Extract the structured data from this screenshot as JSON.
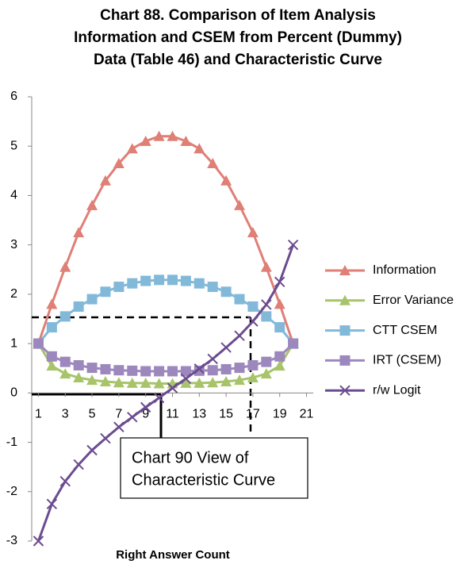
{
  "chart_data": {
    "type": "line",
    "title": [
      "Chart 88. Comparison of Item Analysis",
      "Information and CSEM from Percent (Dummy)",
      "Data (Table 46) and Characteristic Curve"
    ],
    "x_label": "Right Answer Count",
    "annotation": [
      "Chart 90 View of",
      "Characteristic Curve"
    ],
    "x": [
      1,
      2,
      3,
      4,
      5,
      6,
      7,
      8,
      9,
      10,
      11,
      12,
      13,
      14,
      15,
      16,
      17,
      18,
      19,
      20
    ],
    "xlim": [
      0.5,
      21.5
    ],
    "xticks": [
      1,
      3,
      5,
      7,
      9,
      11,
      13,
      15,
      17,
      19,
      21
    ],
    "ylim": [
      -3,
      6
    ],
    "yticks": [
      -3,
      -2,
      -1,
      0,
      1,
      2,
      3,
      4,
      5,
      6
    ],
    "legend": "right",
    "series": [
      {
        "name": "Information",
        "color": "#df7f76",
        "marker": "triangle",
        "values": [
          1.0,
          1.8,
          2.55,
          3.25,
          3.8,
          4.3,
          4.65,
          4.95,
          5.1,
          5.2,
          5.2,
          5.1,
          4.95,
          4.65,
          4.3,
          3.8,
          3.25,
          2.55,
          1.8,
          1.0
        ]
      },
      {
        "name": "Error Variance",
        "color": "#a7c46a",
        "marker": "triangle",
        "values": [
          1.0,
          0.55,
          0.39,
          0.31,
          0.26,
          0.23,
          0.21,
          0.2,
          0.2,
          0.19,
          0.19,
          0.2,
          0.2,
          0.21,
          0.23,
          0.26,
          0.31,
          0.39,
          0.55,
          1.0
        ]
      },
      {
        "name": "CTT CSEM",
        "color": "#82b9d9",
        "marker": "square",
        "values": [
          1.0,
          1.33,
          1.55,
          1.75,
          1.9,
          2.05,
          2.15,
          2.22,
          2.27,
          2.29,
          2.29,
          2.27,
          2.22,
          2.15,
          2.05,
          1.9,
          1.75,
          1.55,
          1.33,
          1.0
        ]
      },
      {
        "name": "IRT (CSEM)",
        "color": "#9d88bd",
        "marker": "square",
        "values": [
          1.0,
          0.74,
          0.63,
          0.56,
          0.51,
          0.48,
          0.46,
          0.45,
          0.44,
          0.44,
          0.44,
          0.44,
          0.45,
          0.46,
          0.48,
          0.51,
          0.56,
          0.63,
          0.74,
          1.0
        ]
      },
      {
        "name": "r/w Logit",
        "color": "#6b4c90",
        "marker": "x",
        "values": [
          -3.0,
          -2.25,
          -1.79,
          -1.45,
          -1.16,
          -0.92,
          -0.69,
          -0.49,
          -0.29,
          -0.1,
          0.1,
          0.29,
          0.49,
          0.69,
          0.92,
          1.16,
          1.45,
          1.79,
          2.25,
          3.0
        ]
      }
    ]
  }
}
